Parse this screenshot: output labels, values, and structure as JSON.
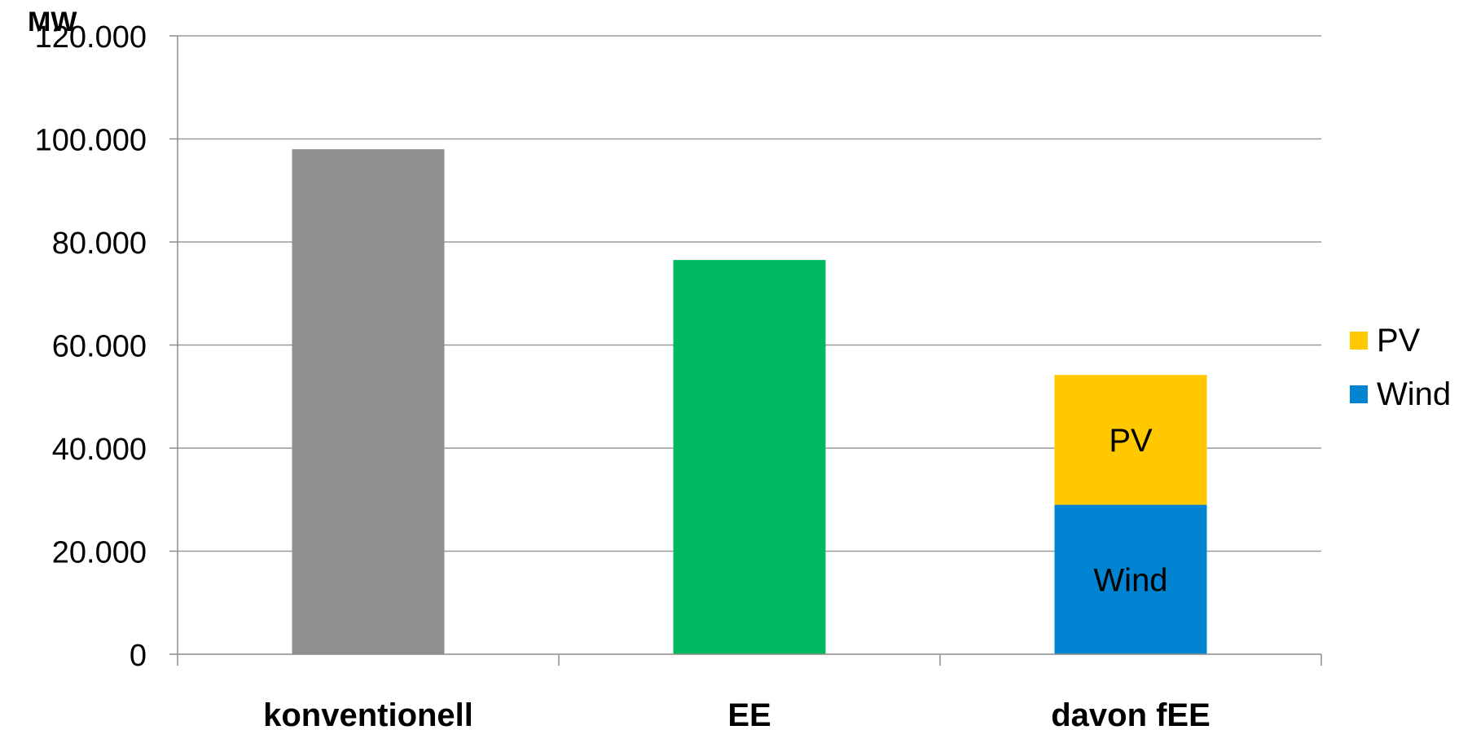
{
  "chart_data": {
    "type": "bar",
    "stacked": true,
    "ylabel": "MW",
    "ylim": [
      0,
      120000
    ],
    "yticks": [
      0,
      20000,
      40000,
      60000,
      80000,
      100000,
      120000
    ],
    "ytick_labels": [
      "0",
      "20.000",
      "40.000",
      "60.000",
      "80.000",
      "100.000",
      "120.000"
    ],
    "grid": true,
    "legend_position": "right",
    "categories": [
      "konventionell",
      "EE",
      "davon fEE"
    ],
    "bars": [
      {
        "category": "konventionell",
        "value": 98000,
        "color": "#8f8f8f"
      },
      {
        "category": "EE",
        "value": 76500,
        "color": "#00b960"
      }
    ],
    "stack": {
      "category": "davon fEE",
      "segments": [
        {
          "name": "Wind",
          "value": 29000,
          "color": "#0084d1",
          "label": "Wind"
        },
        {
          "name": "PV",
          "value": 25200,
          "color": "#ffc800",
          "label": "PV"
        }
      ]
    },
    "legend": [
      {
        "label": "PV",
        "color": "#ffc800"
      },
      {
        "label": "Wind",
        "color": "#0084d1"
      }
    ]
  }
}
